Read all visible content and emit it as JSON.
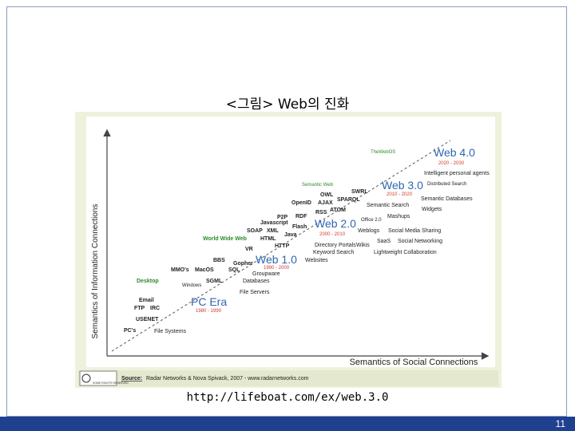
{
  "slide": {
    "caption": "<그림> Web의 진화",
    "source_url": "http://lifeboat.com/ex/web.3.0",
    "page_number": "11"
  },
  "diagram": {
    "y_axis_label": "Semantics of Information Connections",
    "x_axis_label": "Semantics of Social Connections",
    "eras": [
      {
        "name": "PC Era",
        "years": "1980 - 1990"
      },
      {
        "name": "Web 1.0",
        "years": "1990 - 2000"
      },
      {
        "name": "Web 2.0",
        "years": "2000 - 2010"
      },
      {
        "name": "Web 3.0",
        "years": "2010 - 2020"
      },
      {
        "name": "Web 4.0",
        "years": "2020 - 2030"
      }
    ],
    "stage_labels": {
      "desktop": "Desktop",
      "world_wide_web": "World Wide Web",
      "semantic_web": "Semantic Web",
      "the_web_os": "TheWebOS"
    },
    "technologies": {
      "pcs": "PC's",
      "usenet": "USENET",
      "ftp": "FTP",
      "irc": "IRC",
      "email": "Email",
      "windows": "Windows",
      "mmos": "MMO's",
      "macos": "MacOS",
      "sgml": "SGML",
      "bbs": "BBS",
      "gopher": "Gopher",
      "sql": "SQL",
      "vr": "VR",
      "html": "HTML",
      "http": "HTTP",
      "soap": "SOAP",
      "xml": "XML",
      "java": "Java",
      "javascript": "Javascript",
      "flash": "Flash",
      "p2p": "P2P",
      "rdf": "RDF",
      "rss": "RSS",
      "openid": "OpenID",
      "ajax": "AJAX",
      "owl": "OWL",
      "swrl": "SWRL",
      "sparql": "SPARQL",
      "atom": "ATOM"
    },
    "applications": {
      "file_systems": "File Systems",
      "file_servers": "File Servers",
      "databases": "Databases",
      "groupware": "Groupware",
      "websites": "Websites",
      "keyword_search": "Keyword Search",
      "directory_portals": "Directory Portals",
      "wikis": "Wikis",
      "lightweight_collaboration": "Lightweight Collaboration",
      "saas": "SaaS",
      "social_networking": "Social Networking",
      "weblogs": "Weblogs",
      "social_media_sharing": "Social Media Sharing",
      "office_20": "Office 2.0",
      "mashups": "Mashups",
      "semantic_search": "Semantic Search",
      "widgets": "Widgets",
      "semantic_databases": "Semantic Databases",
      "intelligent_agents": "Intelligent personal agents",
      "distributed_search": "Distributed Search"
    },
    "source_label": "Source:",
    "source_text": "Radar Networks & Nova Spivack, 2007 - www.radarnetworks.com",
    "license_text": "SOME RIGHTS RESERVED",
    "colors": {
      "era_blue": "#2e66b0",
      "era_red": "#d03a2a",
      "stage_green": "#2d8a2d",
      "text_dark": "#222222"
    }
  }
}
